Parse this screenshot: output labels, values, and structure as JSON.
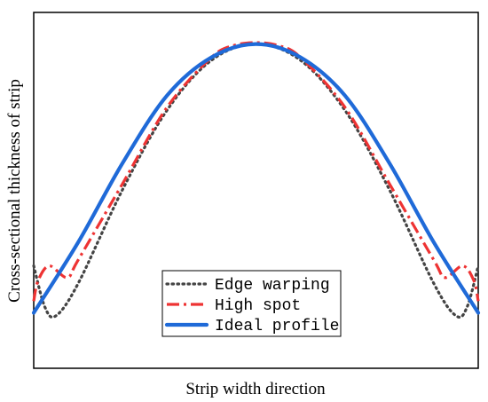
{
  "chart_data": {
    "type": "line",
    "title": "",
    "xlabel": "Strip width direction",
    "ylabel": "Cross-sectional thickness of strip",
    "xlim": [
      -1,
      1
    ],
    "ylim": [
      0,
      1
    ],
    "grid": false,
    "ticks": false,
    "legend_position": "bottom-center",
    "series": [
      {
        "name": "Edge warping",
        "color": "#444444",
        "style": "dotted",
        "x": [
          -1,
          -0.95,
          -0.9,
          -0.8,
          -0.6,
          -0.4,
          -0.2,
          0,
          0.2,
          0.4,
          0.6,
          0.8,
          0.9,
          0.95,
          1
        ],
        "y": [
          0.24,
          0.1,
          0.07,
          0.18,
          0.5,
          0.77,
          0.94,
          0.995,
          0.94,
          0.77,
          0.5,
          0.18,
          0.07,
          0.1,
          0.24
        ]
      },
      {
        "name": "High spot",
        "color": "#ee3333",
        "style": "dashdot",
        "x": [
          -1,
          -0.98,
          -0.93,
          -0.85,
          -0.8,
          -0.6,
          -0.4,
          -0.2,
          -0.1,
          0,
          0.1,
          0.2,
          0.4,
          0.6,
          0.8,
          0.85,
          0.93,
          0.98,
          1
        ],
        "y": [
          0.12,
          0.19,
          0.24,
          0.2,
          0.26,
          0.52,
          0.78,
          0.95,
          0.99,
          1.0,
          0.99,
          0.95,
          0.78,
          0.52,
          0.26,
          0.2,
          0.24,
          0.19,
          0.12
        ]
      },
      {
        "name": "Ideal profile",
        "color": "#1f6ad8",
        "style": "solid",
        "x": [
          -1,
          -0.8,
          -0.6,
          -0.4,
          -0.2,
          0,
          0.2,
          0.4,
          0.6,
          0.8,
          1
        ],
        "y": [
          0.08,
          0.32,
          0.59,
          0.82,
          0.95,
          0.995,
          0.95,
          0.82,
          0.59,
          0.32,
          0.08
        ]
      }
    ]
  }
}
